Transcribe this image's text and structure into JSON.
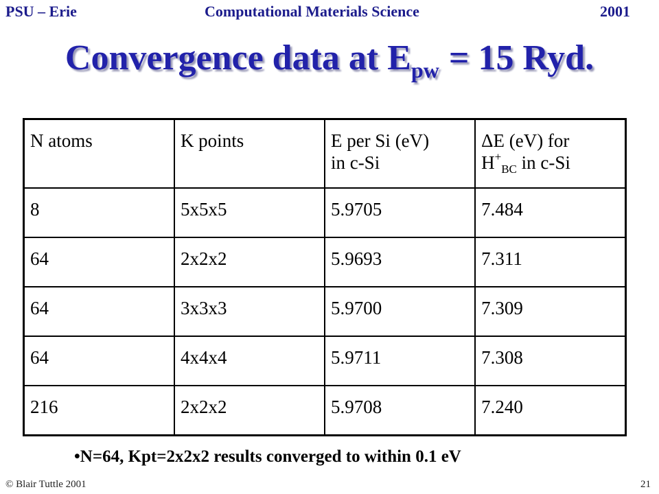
{
  "header": {
    "left": "PSU – Erie",
    "center": "Computational Materials Science",
    "right": "2001"
  },
  "title": {
    "main": "Convergence data at E",
    "subscript": "pw",
    "rest": "= 15 Ryd."
  },
  "table": {
    "header": [
      "N atoms",
      "K points",
      [
        "E per Si (eV)",
        "in c-Si"
      ],
      {
        "line1": "ΔE (eV) for",
        "base": "H",
        "sup": "+",
        "sub": "BC",
        "tail": "in c-Si"
      }
    ],
    "rows": [
      [
        "8",
        "5x5x5",
        "5.9705",
        "7.484"
      ],
      [
        "64",
        "2x2x2",
        "5.9693",
        "7.311"
      ],
      [
        "64",
        "3x3x3",
        "5.9700",
        "7.309"
      ],
      [
        "64",
        "4x4x4",
        "5.9711",
        "7.308"
      ],
      [
        "216",
        "2x2x2",
        "5.9708",
        "7.240"
      ]
    ]
  },
  "bullet": "N=64, Kpt=2x2x2 results converged to within 0.1 eV",
  "footer": {
    "copyright": "© Blair Tuttle 2001",
    "page": "21"
  }
}
